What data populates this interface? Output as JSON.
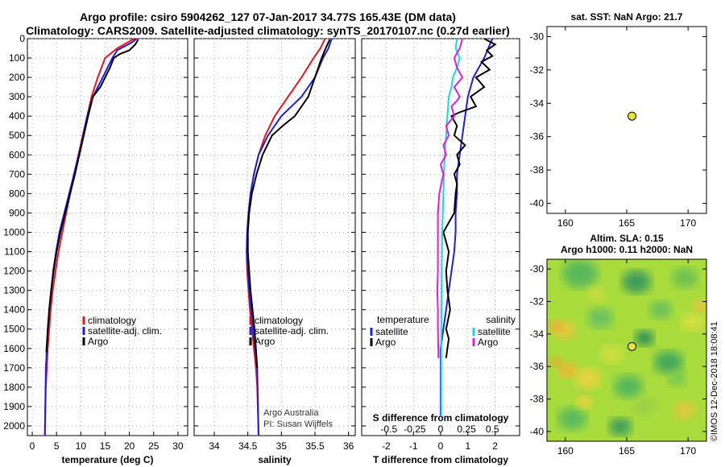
{
  "header": {
    "title_line1": "Argo profile: csiro 5904262_127 07-Jan-2017 34.77S 165.43E (DM data)",
    "title_line2": "Climatology: CARS2009. Satellite-adjusted climatology: synTS_20170107.nc (0.27d earlier)"
  },
  "credits": {
    "line1": "Argo Australia",
    "line2": "PI: Susan Wijffels"
  },
  "watermark": "©IMOS 12-Dec-2018 18:08:41",
  "colors": {
    "climatology": "#e8141e",
    "satellite": "#1e1edc",
    "argo": "#000000",
    "argo_salinity_diff": "#e619e6",
    "satellite_salinity_diff": "#14dcdc",
    "marker_fill": "#e6e632"
  },
  "chart_data": [
    {
      "id": "temperature",
      "type": "line",
      "xlabel": "temperature (deg C)",
      "ylabel": "",
      "xlim": [
        -1,
        32
      ],
      "ylim": [
        2050,
        0
      ],
      "xticks": [
        0,
        5,
        10,
        15,
        20,
        25,
        30
      ],
      "yticks": [
        0,
        100,
        200,
        300,
        400,
        500,
        600,
        700,
        800,
        900,
        1000,
        1100,
        1200,
        1300,
        1400,
        1500,
        1600,
        1700,
        1800,
        1900,
        2000
      ],
      "grid": true,
      "legend": {
        "placement": "lower-center",
        "entries": [
          "climatology",
          "satellite-adj. clim.",
          "Argo"
        ]
      },
      "series": [
        {
          "name": "climatology",
          "color": "#e8141e",
          "x": [
            21.0,
            17.5,
            15.0,
            13.5,
            12.2,
            11.3,
            10.4,
            9.5,
            8.6,
            7.8,
            7.0,
            6.2,
            5.4,
            4.8,
            4.2,
            3.8,
            3.5,
            3.2,
            3.0,
            2.8,
            2.6
          ],
          "y": [
            0,
            50,
            100,
            200,
            300,
            400,
            500,
            600,
            700,
            800,
            900,
            1000,
            1100,
            1200,
            1300,
            1400,
            1500,
            1600,
            1700,
            1800,
            2050
          ]
        },
        {
          "name": "satellite-adj. clim.",
          "color": "#1e1edc",
          "x": [
            21.5,
            20.5,
            17.5,
            16.5,
            14.5,
            12.5,
            11.3,
            10.5,
            9.6,
            8.6,
            7.6,
            6.6,
            5.6,
            4.9,
            4.3,
            3.9,
            3.5,
            3.2,
            3.0,
            2.8,
            2.6
          ],
          "y": [
            0,
            20,
            60,
            100,
            200,
            300,
            400,
            500,
            600,
            700,
            800,
            900,
            1000,
            1100,
            1200,
            1300,
            1400,
            1500,
            1600,
            1700,
            2050
          ]
        },
        {
          "name": "Argo",
          "color": "#000000",
          "x": [
            21.8,
            21.2,
            20.0,
            18.0,
            16.8,
            16.0,
            15.0,
            14.0,
            12.5,
            11.5,
            10.6,
            9.7,
            8.8,
            7.8,
            6.8,
            5.8,
            5.0,
            4.4,
            3.9,
            3.5,
            3.2,
            2.9
          ],
          "y": [
            5,
            30,
            60,
            80,
            100,
            150,
            200,
            250,
            300,
            400,
            500,
            600,
            700,
            800,
            900,
            1000,
            1100,
            1200,
            1300,
            1400,
            1500,
            1620
          ]
        }
      ]
    },
    {
      "id": "salinity",
      "type": "line",
      "xlabel": "salinity",
      "ylabel": "",
      "xlim": [
        33.7,
        36.1
      ],
      "ylim": [
        2050,
        0
      ],
      "xticks": [
        34,
        34.5,
        35,
        35.5,
        36
      ],
      "grid": true,
      "legend": {
        "placement": "lower-center",
        "entries": [
          "climatology",
          "satellite-adj. clim.",
          "Argo"
        ]
      },
      "series": [
        {
          "name": "climatology",
          "color": "#e8141e",
          "x": [
            35.65,
            35.58,
            35.48,
            35.3,
            35.1,
            34.9,
            34.76,
            34.66,
            34.59,
            34.54,
            34.51,
            34.49,
            34.48,
            34.49,
            34.51,
            34.53,
            34.56,
            34.59,
            34.62,
            34.64,
            34.66
          ],
          "y": [
            0,
            50,
            100,
            200,
            300,
            400,
            500,
            600,
            700,
            800,
            900,
            1000,
            1100,
            1200,
            1300,
            1400,
            1500,
            1600,
            1700,
            1800,
            2050
          ]
        },
        {
          "name": "satellite-adj. clim.",
          "color": "#1e1edc",
          "x": [
            35.75,
            35.7,
            35.62,
            35.5,
            35.3,
            35.0,
            34.8,
            34.66,
            34.59,
            34.54,
            34.51,
            34.49,
            34.49,
            34.5,
            34.52,
            34.55,
            34.58,
            34.61,
            34.64,
            34.66
          ],
          "y": [
            0,
            50,
            100,
            200,
            300,
            400,
            500,
            600,
            700,
            800,
            900,
            1000,
            1100,
            1200,
            1300,
            1400,
            1500,
            1600,
            1700,
            2050
          ]
        },
        {
          "name": "Argo",
          "color": "#000000",
          "x": [
            35.72,
            35.66,
            35.6,
            35.5,
            35.4,
            35.2,
            35.02,
            34.86,
            34.72,
            34.63,
            34.56,
            34.52,
            34.5,
            34.5,
            34.52,
            34.54,
            34.57,
            34.6,
            34.62,
            34.64
          ],
          "y": [
            5,
            50,
            100,
            200,
            300,
            400,
            450,
            500,
            600,
            700,
            800,
            900,
            1000,
            1100,
            1200,
            1300,
            1400,
            1500,
            1600,
            1700
          ]
        }
      ]
    },
    {
      "id": "difference",
      "type": "line",
      "xlabel": "T difference from climatology",
      "xlabel_top": "S difference from climatology",
      "xlim": [
        -2.9,
        2.9
      ],
      "ylim": [
        2050,
        0
      ],
      "xticks": [
        -2,
        -1,
        0,
        1,
        2
      ],
      "xticks_s": [
        "-0.5",
        "-0.25",
        "0",
        "0.25",
        "0.5"
      ],
      "grid": true,
      "legend_temperature": {
        "placement": "lower-left",
        "heading": "temperature",
        "entries": [
          "satellite",
          "Argo"
        ]
      },
      "legend_salinity": {
        "placement": "lower-right",
        "heading": "salinity",
        "entries": [
          "satellite",
          "Argo"
        ]
      },
      "series": [
        {
          "name": "satellite",
          "group": "temperature",
          "color": "#1e1edc",
          "x": [
            1.9,
            1.6,
            1.2,
            1.0,
            0.9,
            0.8,
            0.7,
            0.6,
            0.6,
            0.55,
            0.55,
            0.5,
            0.4,
            0.3,
            0.2,
            0.1,
            0.0,
            0.0
          ],
          "y": [
            0,
            100,
            200,
            300,
            400,
            500,
            600,
            700,
            800,
            900,
            1000,
            1100,
            1200,
            1300,
            1400,
            1500,
            1600,
            1950
          ]
        },
        {
          "name": "Argo",
          "group": "temperature",
          "color": "#000000",
          "x": [
            1.6,
            2.0,
            1.7,
            1.9,
            1.5,
            1.8,
            1.3,
            1.6,
            1.1,
            1.3,
            0.7,
            0.4,
            0.6,
            0.5,
            0.9,
            0.6,
            0.7,
            0.5,
            0.6,
            0.55,
            0.5,
            0.3,
            0.1,
            0.2,
            0.3,
            0.2,
            0.25,
            0.35,
            0.2,
            0.3,
            0.25,
            0.2
          ],
          "y": [
            0,
            30,
            60,
            90,
            120,
            160,
            200,
            250,
            300,
            350,
            380,
            400,
            450,
            500,
            550,
            600,
            650,
            700,
            750,
            800,
            900,
            950,
            1000,
            1050,
            1100,
            1200,
            1300,
            1400,
            1500,
            1550,
            1600,
            1650
          ]
        },
        {
          "name": "satellite",
          "group": "salinity",
          "color": "#14dcdc",
          "x": [
            0.6,
            0.55,
            0.7,
            0.6,
            0.45,
            0.4,
            0.3,
            0.25,
            0.2,
            0.15,
            0.12,
            0.1,
            0.08,
            0.06,
            0.05,
            0.04,
            0.03,
            0.02,
            0.02
          ],
          "y": [
            0,
            50,
            100,
            150,
            200,
            250,
            300,
            400,
            500,
            600,
            700,
            800,
            900,
            1000,
            1100,
            1200,
            1400,
            1600,
            1950
          ]
        },
        {
          "name": "Argo",
          "group": "salinity",
          "color": "#e619e6",
          "x": [
            0.8,
            0.7,
            0.5,
            0.6,
            0.8,
            0.5,
            0.7,
            0.6,
            0.4,
            0.5,
            0.2,
            0.3,
            0.1,
            0.2,
            0.0,
            0.1,
            -0.05,
            -0.1,
            -0.1,
            -0.1,
            -0.1,
            -0.12,
            -0.1,
            -0.1,
            -0.08
          ],
          "y": [
            0,
            50,
            100,
            150,
            200,
            250,
            300,
            320,
            350,
            400,
            450,
            500,
            550,
            600,
            650,
            700,
            800,
            900,
            1000,
            1100,
            1200,
            1300,
            1400,
            1500,
            1650
          ]
        }
      ]
    },
    {
      "id": "sst_map",
      "type": "scatter",
      "title": "sat. SST: NaN Argo: 21.7",
      "xlim": [
        158.5,
        171.5
      ],
      "ylim": [
        -40.6,
        -29.4
      ],
      "xticks": [
        160,
        165,
        170
      ],
      "yticks": [
        -30,
        -32,
        -34,
        -36,
        -38,
        -40
      ],
      "points": [
        {
          "x": 165.43,
          "y": -34.77
        }
      ]
    },
    {
      "id": "sla_map",
      "type": "heatmap",
      "title_line1": "Altim. SLA: 0.15",
      "title_line2": "Argo h1000: 0.11 h2000: NaN",
      "xlim": [
        158.5,
        171.5
      ],
      "ylim": [
        -40.6,
        -29.4
      ],
      "xticks": [
        160,
        165,
        170
      ],
      "yticks": [
        -30,
        -32,
        -34,
        -36,
        -38,
        -40
      ],
      "points": [
        {
          "x": 165.43,
          "y": -34.77
        }
      ]
    }
  ]
}
